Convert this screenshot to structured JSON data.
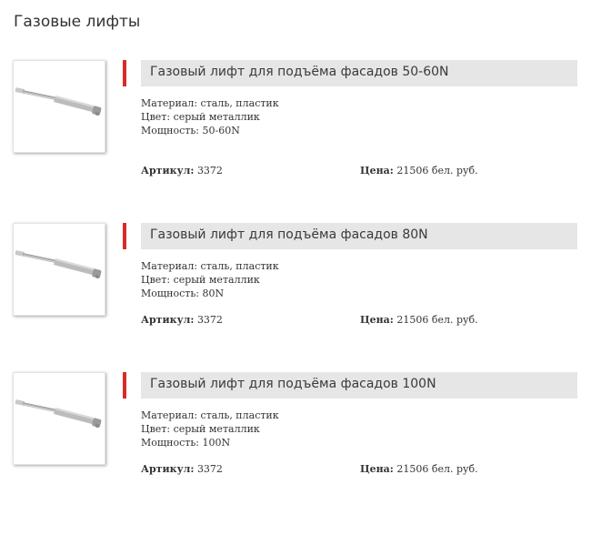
{
  "page": {
    "title": "Газовые лифты"
  },
  "labels": {
    "article": "Артикул:",
    "price": "Цена:"
  },
  "products": [
    {
      "title": "Газовый лифт для подъёма фасадов 50-60N",
      "material": "Материал: сталь, пластик",
      "color": "Цвет: серый металлик",
      "power": "Мощность: 50-60N",
      "article": "3372",
      "price": "21506 бел. руб."
    },
    {
      "title": "Газовый лифт для подъёма фасадов 80N",
      "material": "Материал: сталь, пластик",
      "color": "Цвет: серый металлик",
      "power": "Мощность: 80N",
      "article": "3372",
      "price": "21506 бел. руб."
    },
    {
      "title": "Газовый лифт для подъёма фасадов 100N",
      "material": "Материал: сталь, пластик",
      "color": "Цвет: серый металлик",
      "power": "Мощность: 100N",
      "article": "3372",
      "price": "21506 бел. руб."
    }
  ],
  "colors": {
    "accent": "#d92b2b",
    "title_bar": "#e6e6e6"
  }
}
